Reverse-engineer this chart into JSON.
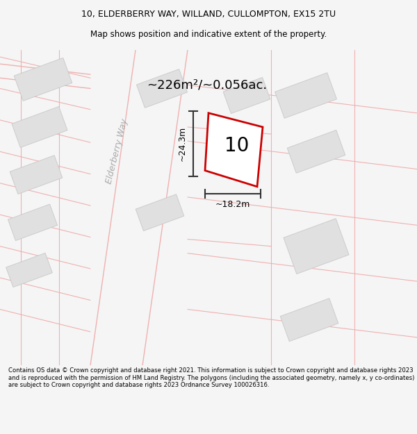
{
  "title_line1": "10, ELDERBERRY WAY, WILLAND, CULLOMPTON, EX15 2TU",
  "title_line2": "Map shows position and indicative extent of the property.",
  "area_text": "~226m²/~0.056ac.",
  "label_number": "10",
  "dim_vertical": "~24.3m",
  "dim_horizontal": "~18.2m",
  "road_label": "Elderberry Way",
  "footer_text": "Contains OS data © Crown copyright and database right 2021. This information is subject to Crown copyright and database rights 2023 and is reproduced with the permission of HM Land Registry. The polygons (including the associated geometry, namely x, y co-ordinates) are subject to Crown copyright and database rights 2023 Ordnance Survey 100026316.",
  "bg_color": "#f5f5f5",
  "map_bg": "#ffffff",
  "road_line_color": "#f0b0b0",
  "plot_stroke": "#cc0000",
  "plot_fill": "#ffffff",
  "building_fill": "#e0e0e0",
  "building_stroke": "#cccccc",
  "dim_line_color": "#333333",
  "text_color": "#000000",
  "road_label_color": "#aaaaaa",
  "footer_bg": "#ffffff",
  "title_fontsize": 9,
  "subtitle_fontsize": 8.5,
  "area_fontsize": 13,
  "dim_fontsize": 9,
  "number_fontsize": 20,
  "road_label_fontsize": 9
}
